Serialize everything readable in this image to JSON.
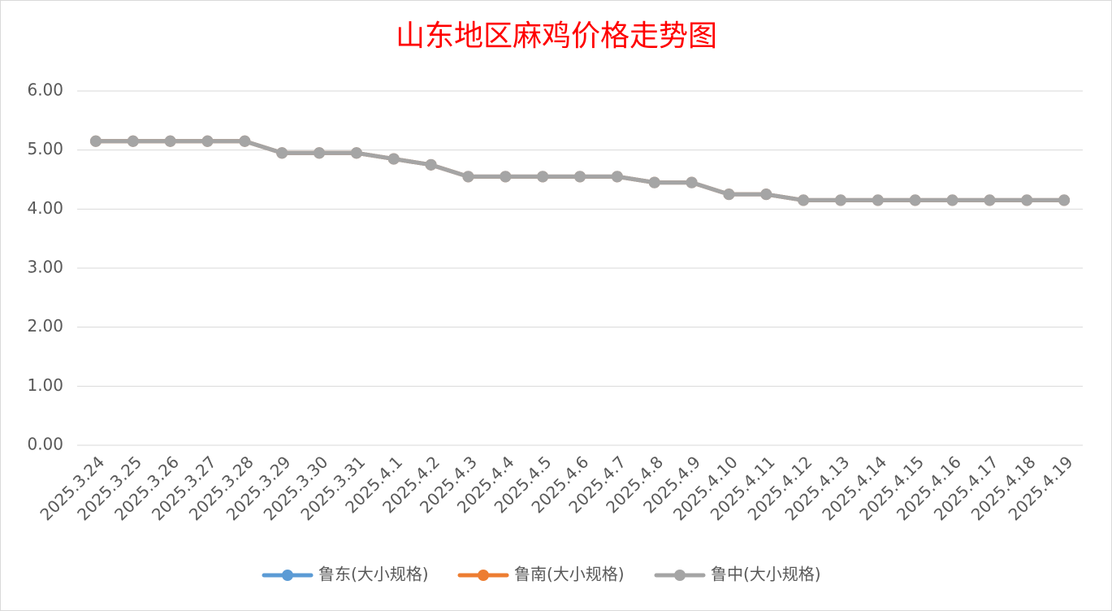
{
  "chart_data": {
    "type": "line",
    "title": "山东地区麻鸡价格走势图",
    "categories": [
      "2025.3.24",
      "2025.3.25",
      "2025.3.26",
      "2025.3.27",
      "2025.3.28",
      "2025.3.29",
      "2025.3.30",
      "2025.3.31",
      "2025.4.1",
      "2025.4.2",
      "2025.4.3",
      "2025.4.4",
      "2025.4.5",
      "2025.4.6",
      "2025.4.7",
      "2025.4.8",
      "2025.4.9",
      "2025.4.10",
      "2025.4.11",
      "2025.4.12",
      "2025.4.13",
      "2025.4.14",
      "2025.4.15",
      "2025.4.16",
      "2025.4.17",
      "2025.4.18",
      "2025.4.19"
    ],
    "series": [
      {
        "name": "鲁东(大小规格)",
        "color": "#5b9bd5",
        "values": [
          5.15,
          5.15,
          5.15,
          5.15,
          5.15,
          4.95,
          4.95,
          4.95,
          4.85,
          4.75,
          4.55,
          4.55,
          4.55,
          4.55,
          4.55,
          4.45,
          4.45,
          4.25,
          4.25,
          4.15,
          4.15,
          4.15,
          4.15,
          4.15,
          4.15,
          4.15,
          4.15
        ]
      },
      {
        "name": "鲁南(大小规格)",
        "color": "#ed7d31",
        "values": [
          5.15,
          5.15,
          5.15,
          5.15,
          5.15,
          4.95,
          4.95,
          4.95,
          4.85,
          4.75,
          4.55,
          4.55,
          4.55,
          4.55,
          4.55,
          4.45,
          4.45,
          4.25,
          4.25,
          4.15,
          4.15,
          4.15,
          4.15,
          4.15,
          4.15,
          4.15,
          4.15
        ]
      },
      {
        "name": "鲁中(大小规格)",
        "color": "#a5a5a5",
        "values": [
          5.15,
          5.15,
          5.15,
          5.15,
          5.15,
          4.95,
          4.95,
          4.95,
          4.85,
          4.75,
          4.55,
          4.55,
          4.55,
          4.55,
          4.55,
          4.45,
          4.45,
          4.25,
          4.25,
          4.15,
          4.15,
          4.15,
          4.15,
          4.15,
          4.15,
          4.15,
          4.15
        ]
      }
    ],
    "ylim": [
      0,
      6
    ],
    "yticks": [
      {
        "value": 0,
        "label": "0.00"
      },
      {
        "value": 1,
        "label": "1.00"
      },
      {
        "value": 2,
        "label": "2.00"
      },
      {
        "value": 3,
        "label": "3.00"
      },
      {
        "value": 4,
        "label": "4.00"
      },
      {
        "value": 5,
        "label": "5.00"
      },
      {
        "value": 6,
        "label": "6.00"
      }
    ],
    "grid": true,
    "legend": "bottom"
  }
}
